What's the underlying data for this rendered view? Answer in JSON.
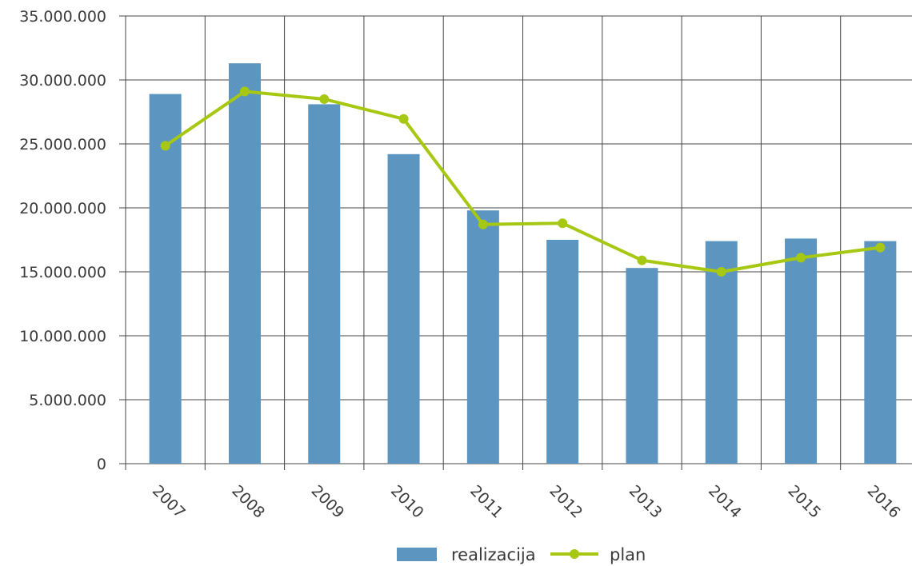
{
  "chart_data": {
    "type": "bar",
    "categories": [
      "2007",
      "2008",
      "2009",
      "2010",
      "2011",
      "2012",
      "2013",
      "2014",
      "2015",
      "2016"
    ],
    "series": [
      {
        "name": "realizacija",
        "kind": "bar",
        "color": "#5b95c0",
        "values": [
          28900000,
          31300000,
          28100000,
          24200000,
          19800000,
          17500000,
          15300000,
          17400000,
          17600000,
          17400000
        ]
      },
      {
        "name": "plan",
        "kind": "line",
        "color": "#a6c813",
        "values": [
          24850000,
          29100000,
          28500000,
          26950000,
          18700000,
          18800000,
          15900000,
          15000000,
          16100000,
          16900000
        ]
      }
    ],
    "title": "",
    "xlabel": "",
    "ylabel": "",
    "ylim": [
      0,
      35000000
    ],
    "yticks": [
      0,
      5000000,
      10000000,
      15000000,
      20000000,
      25000000,
      30000000,
      35000000
    ],
    "ytick_labels": [
      "0",
      "5.000.000",
      "10.000.000",
      "15.000.000",
      "20.000.000",
      "25.000.000",
      "30.000.000",
      "35.000.000"
    ],
    "grid": true,
    "legend_position": "bottom-center",
    "gridline_color": "#444444"
  }
}
